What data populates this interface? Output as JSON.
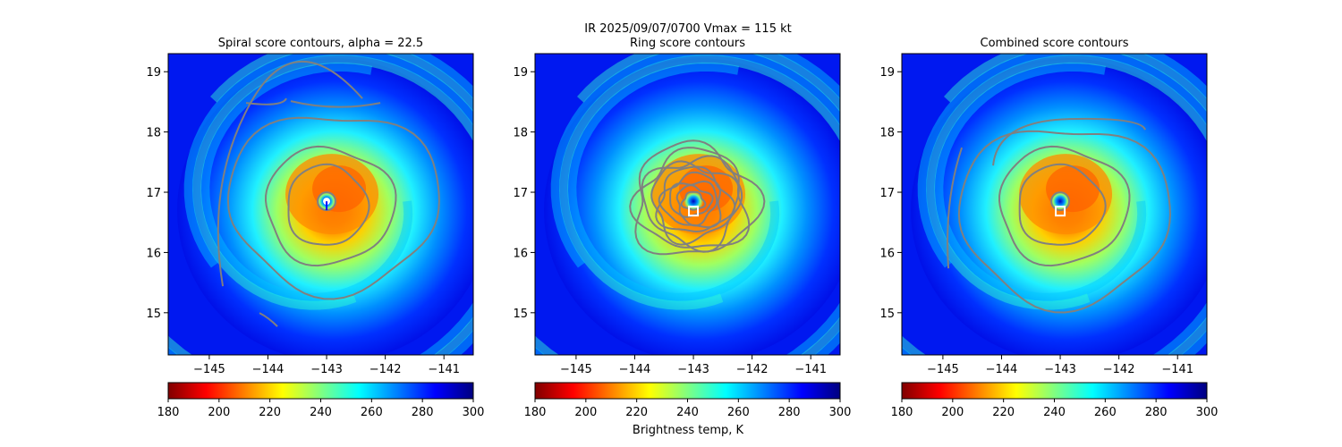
{
  "figure": {
    "suptitle_line1": "IR  2025/09/07/0700    Vmax = 115 kt",
    "colorbar_label": "Brightness temp, K"
  },
  "chart_data": [
    {
      "type": "heatmap",
      "title": "Spiral score contours, alpha = 22.5",
      "xlim": [
        -145.7,
        -140.5
      ],
      "ylim": [
        14.3,
        19.3
      ],
      "xticks": [
        -145,
        -144,
        -143,
        -142,
        -141
      ],
      "yticks": [
        15,
        16,
        17,
        18,
        19
      ],
      "colormap": "jet_r",
      "clim": [
        180,
        300
      ],
      "colorbar_ticks": [
        180,
        200,
        220,
        240,
        260,
        280,
        300
      ],
      "center": {
        "lon": -143.0,
        "lat": 16.85
      },
      "marker": "white dot"
    },
    {
      "type": "heatmap",
      "title": "Ring score contours",
      "xlim": [
        -145.7,
        -140.5
      ],
      "ylim": [
        14.3,
        19.3
      ],
      "xticks": [
        -145,
        -144,
        -143,
        -142,
        -141
      ],
      "yticks": [
        15,
        16,
        17,
        18,
        19
      ],
      "colormap": "jet_r",
      "clim": [
        180,
        300
      ],
      "colorbar_ticks": [
        180,
        200,
        220,
        240,
        260,
        280,
        300
      ],
      "center": {
        "lon": -143.0,
        "lat": 16.85
      },
      "marker": "white square"
    },
    {
      "type": "heatmap",
      "title": "Combined score contours",
      "xlim": [
        -145.7,
        -140.5
      ],
      "ylim": [
        14.3,
        19.3
      ],
      "xticks": [
        -145,
        -144,
        -143,
        -142,
        -141
      ],
      "yticks": [
        15,
        16,
        17,
        18,
        19
      ],
      "colormap": "jet_r",
      "clim": [
        180,
        300
      ],
      "colorbar_ticks": [
        180,
        200,
        220,
        240,
        260,
        280,
        300
      ],
      "center": {
        "lon": -143.0,
        "lat": 16.85
      },
      "marker": "white square"
    }
  ],
  "colors": {
    "contour": "#808080",
    "background": "#ffffff",
    "colormap_stops": [
      "#800000",
      "#ff0000",
      "#ff8000",
      "#ffff00",
      "#80ff80",
      "#00ffff",
      "#0080ff",
      "#0000ff",
      "#000080"
    ]
  }
}
